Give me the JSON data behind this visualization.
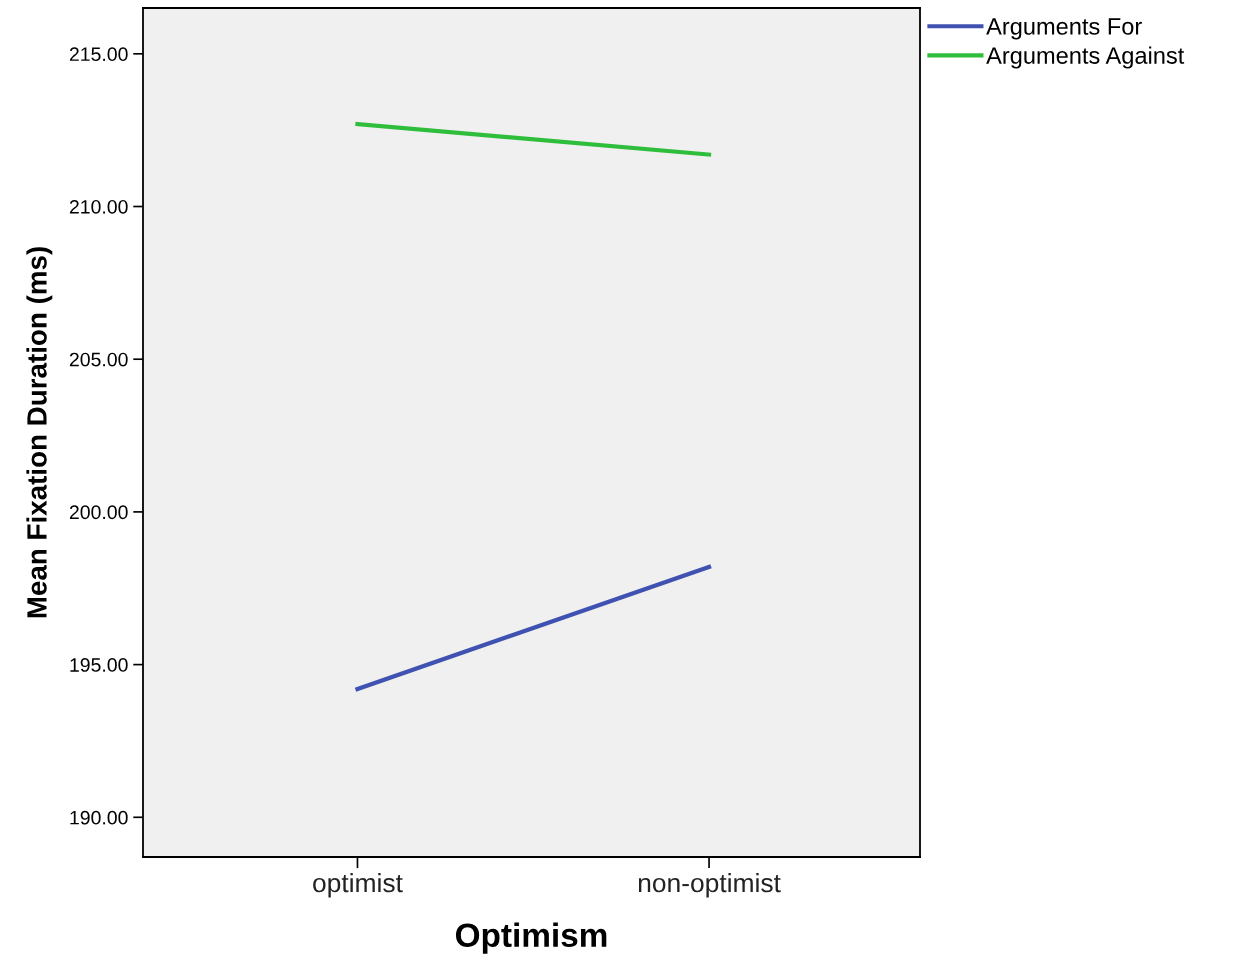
{
  "chart_data": {
    "type": "line",
    "xlabel": "Optimism",
    "ylabel": "Mean Fixation Duration (ms)",
    "categories": [
      "optimist",
      "non-optimist"
    ],
    "series": [
      {
        "name": "Arguments For",
        "color": "#3f51b1",
        "values": [
          194.2,
          198.2
        ]
      },
      {
        "name": "Arguments Against",
        "color": "#2fbe3c",
        "values": [
          212.7,
          211.7
        ]
      }
    ],
    "ylim": [
      188.7,
      216.5
    ],
    "yticks": [
      {
        "value": 190,
        "label": "190.00"
      },
      {
        "value": 195,
        "label": "195.00"
      },
      {
        "value": 200,
        "label": "200.00"
      },
      {
        "value": 205,
        "label": "205.00"
      },
      {
        "value": 210,
        "label": "210.00"
      },
      {
        "value": 215,
        "label": "215.00"
      }
    ],
    "grid": false,
    "legend": "top right",
    "marker": "none",
    "line_style": "solid"
  }
}
